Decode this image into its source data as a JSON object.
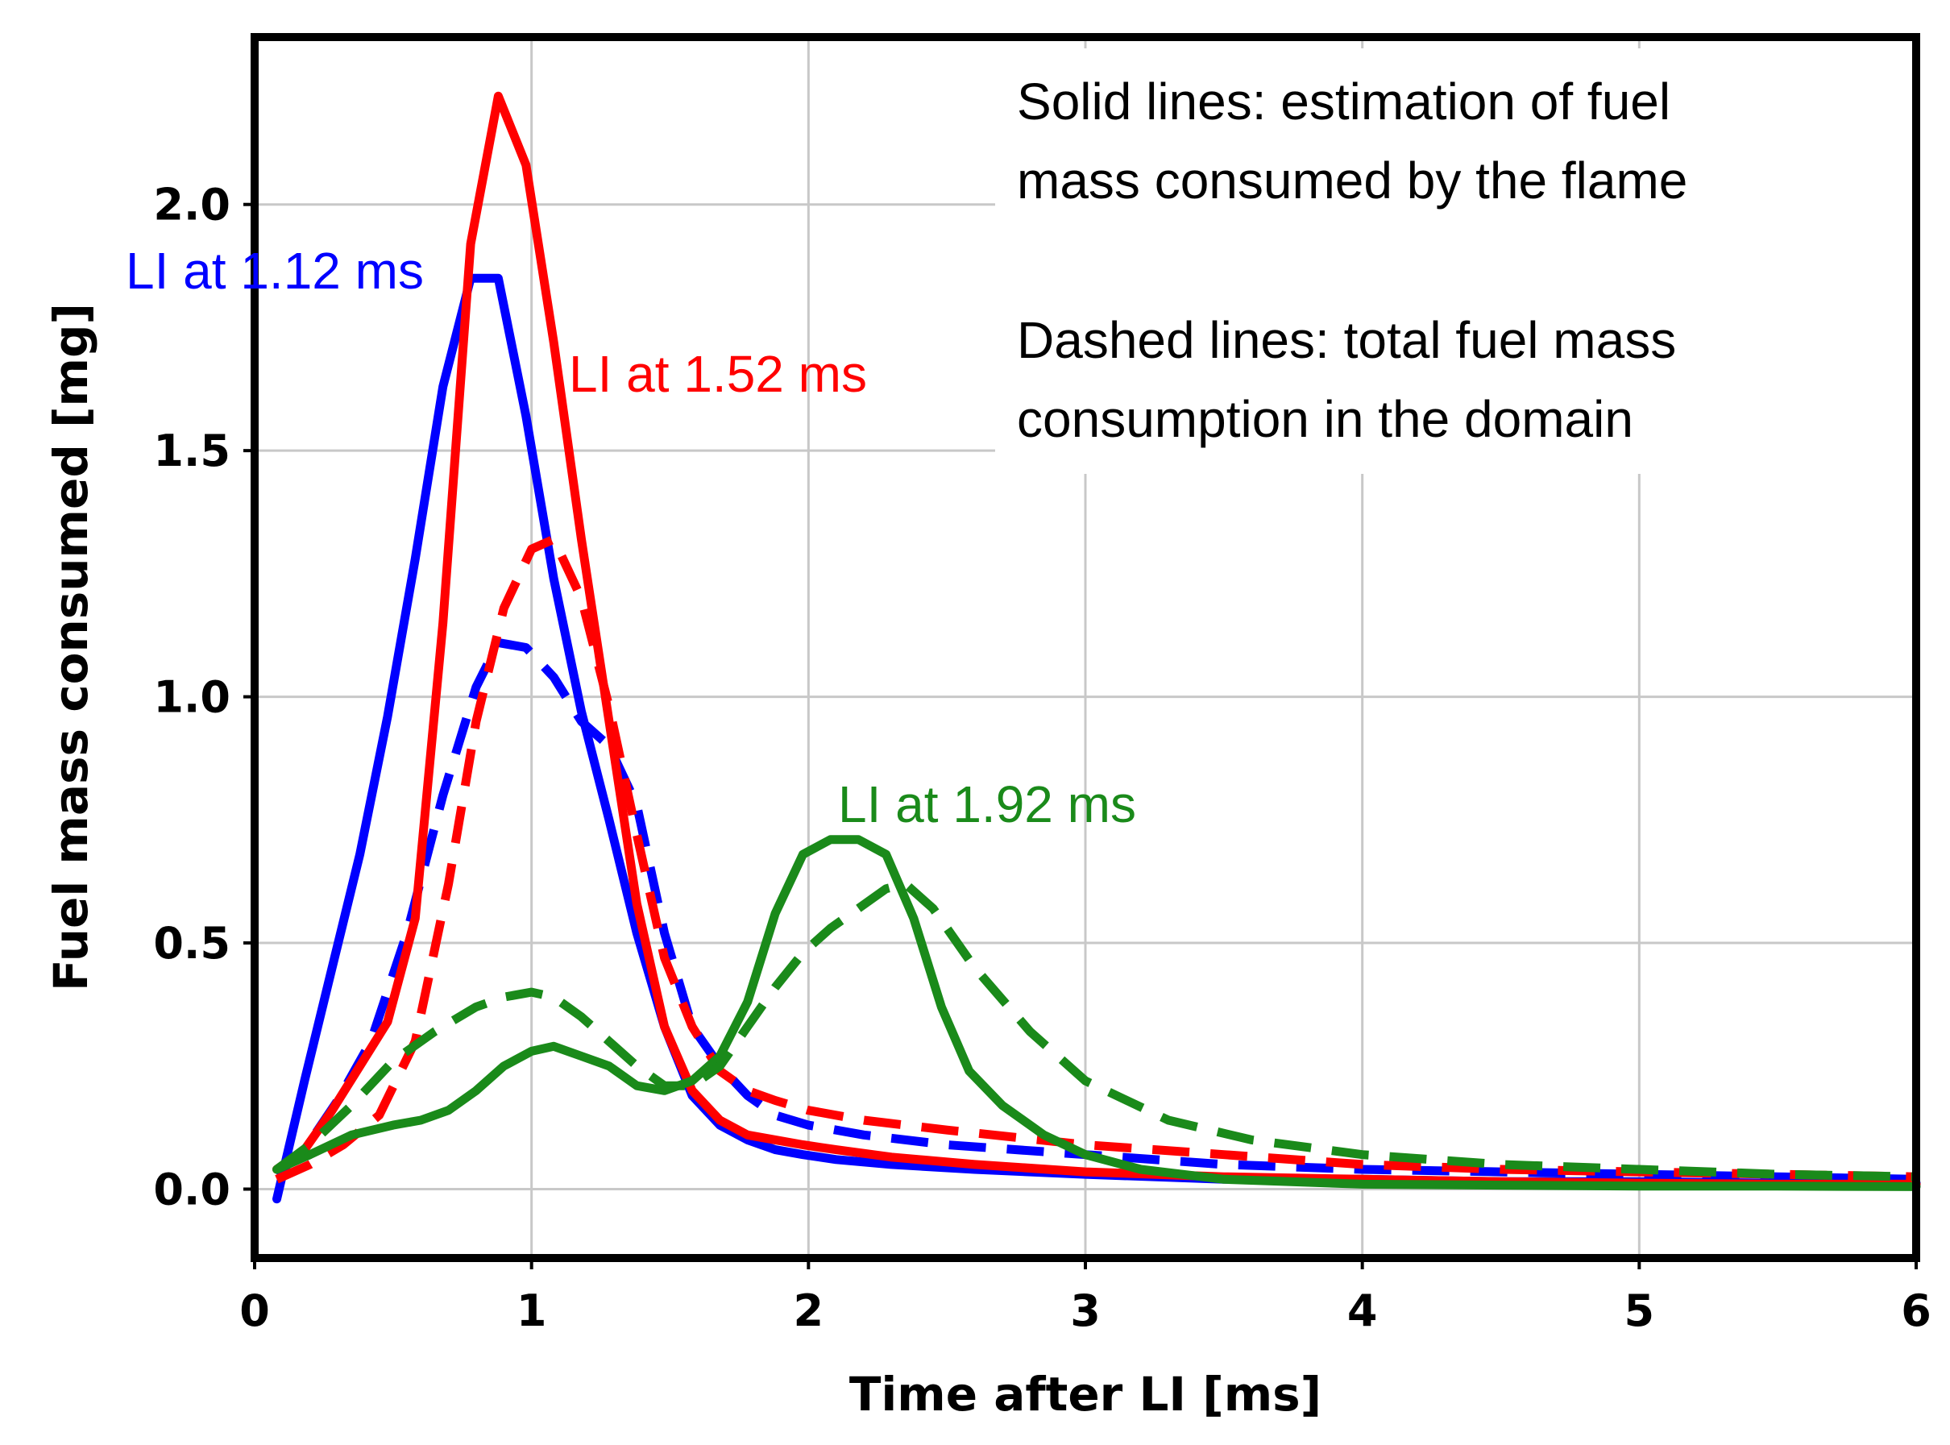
{
  "chart_data": {
    "type": "line",
    "xlabel": "Time after LI [ms]",
    "ylabel": "Fuel mass consumed [mg]",
    "xlim": [
      0,
      6
    ],
    "ylim": [
      -0.14,
      2.34
    ],
    "xticks": [
      0,
      1,
      2,
      3,
      4,
      5,
      6
    ],
    "xtick_labels": [
      "0",
      "1",
      "2",
      "3",
      "4",
      "5",
      "6"
    ],
    "yticks": [
      0.0,
      0.5,
      1.0,
      1.5,
      2.0
    ],
    "ytick_labels": [
      "0.0",
      "0.5",
      "1.0",
      "1.5",
      "2.0"
    ],
    "grid": true,
    "annotations": {
      "solid_line1": "Solid lines: estimation of fuel",
      "solid_line2": "mass consumed by the flame",
      "dashed_line1": "Dashed lines: total fuel mass",
      "dashed_line2": "consumption in the domain"
    },
    "series": [
      {
        "name": "LI at 1.12 ms — flame estimate",
        "label": "LI at 1.12 ms",
        "color": "#0000ff",
        "style": "solid",
        "x": [
          0.08,
          0.18,
          0.28,
          0.38,
          0.48,
          0.58,
          0.68,
          0.78,
          0.88,
          0.98,
          1.08,
          1.18,
          1.28,
          1.38,
          1.48,
          1.58,
          1.68,
          1.78,
          1.88,
          1.98,
          2.1,
          2.3,
          2.6,
          3.0,
          3.5,
          4.0,
          4.5,
          5.0,
          5.5,
          6.0
        ],
        "y": [
          -0.02,
          0.22,
          0.45,
          0.68,
          0.96,
          1.28,
          1.63,
          1.85,
          1.85,
          1.57,
          1.24,
          0.97,
          0.75,
          0.52,
          0.33,
          0.19,
          0.13,
          0.1,
          0.08,
          0.07,
          0.06,
          0.05,
          0.04,
          0.03,
          0.02,
          0.02,
          0.015,
          0.015,
          0.012,
          0.012
        ]
      },
      {
        "name": "LI at 1.12 ms — total domain",
        "color": "#0000ff",
        "style": "dashed",
        "x": [
          0.08,
          0.18,
          0.3,
          0.42,
          0.55,
          0.68,
          0.8,
          0.88,
          0.98,
          1.08,
          1.18,
          1.28,
          1.38,
          1.48,
          1.58,
          1.68,
          1.78,
          1.88,
          2.0,
          2.2,
          2.5,
          3.0,
          3.5,
          4.0,
          4.5,
          5.0,
          5.5,
          6.0
        ],
        "y": [
          0.03,
          0.08,
          0.18,
          0.3,
          0.52,
          0.8,
          1.02,
          1.11,
          1.1,
          1.04,
          0.95,
          0.9,
          0.78,
          0.52,
          0.33,
          0.25,
          0.19,
          0.15,
          0.13,
          0.11,
          0.09,
          0.07,
          0.05,
          0.04,
          0.035,
          0.03,
          0.025,
          0.02
        ]
      },
      {
        "name": "LI at 1.52 ms — flame estimate",
        "label": "LI at 1.52 ms",
        "color": "#ff0000",
        "style": "solid",
        "x": [
          0.08,
          0.18,
          0.28,
          0.38,
          0.48,
          0.58,
          0.68,
          0.78,
          0.88,
          0.98,
          1.08,
          1.18,
          1.28,
          1.38,
          1.48,
          1.58,
          1.68,
          1.78,
          1.88,
          1.98,
          2.1,
          2.3,
          2.6,
          3.0,
          3.5,
          4.0,
          4.5,
          5.0,
          5.5,
          6.0
        ],
        "y": [
          0.04,
          0.08,
          0.16,
          0.25,
          0.34,
          0.55,
          1.15,
          1.92,
          2.22,
          2.08,
          1.72,
          1.32,
          0.95,
          0.58,
          0.33,
          0.2,
          0.14,
          0.11,
          0.1,
          0.09,
          0.08,
          0.065,
          0.05,
          0.035,
          0.025,
          0.02,
          0.015,
          0.012,
          0.01,
          0.01
        ]
      },
      {
        "name": "LI at 1.52 ms — total domain",
        "color": "#ff0000",
        "style": "dashed",
        "x": [
          0.08,
          0.2,
          0.32,
          0.45,
          0.58,
          0.7,
          0.8,
          0.9,
          1.0,
          1.08,
          1.18,
          1.28,
          1.38,
          1.48,
          1.58,
          1.68,
          1.78,
          1.88,
          2.0,
          2.2,
          2.5,
          3.0,
          3.5,
          4.0,
          4.5,
          5.0,
          5.5,
          6.0
        ],
        "y": [
          0.02,
          0.05,
          0.09,
          0.15,
          0.3,
          0.62,
          0.95,
          1.18,
          1.3,
          1.32,
          1.2,
          0.98,
          0.72,
          0.47,
          0.33,
          0.24,
          0.2,
          0.18,
          0.16,
          0.14,
          0.12,
          0.09,
          0.07,
          0.05,
          0.04,
          0.035,
          0.03,
          0.025
        ]
      },
      {
        "name": "LI at 1.92 ms — flame estimate",
        "label": "LI at 1.92 ms",
        "color": "#1a8a1a",
        "style": "solid",
        "x": [
          0.08,
          0.2,
          0.35,
          0.5,
          0.6,
          0.7,
          0.8,
          0.9,
          1.0,
          1.08,
          1.18,
          1.28,
          1.38,
          1.48,
          1.58,
          1.68,
          1.78,
          1.88,
          1.98,
          2.08,
          2.18,
          2.28,
          2.38,
          2.48,
          2.58,
          2.7,
          2.85,
          3.0,
          3.2,
          3.5,
          4.0,
          4.5,
          5.0,
          5.5,
          6.0
        ],
        "y": [
          0.04,
          0.07,
          0.11,
          0.13,
          0.14,
          0.16,
          0.2,
          0.25,
          0.28,
          0.29,
          0.27,
          0.25,
          0.21,
          0.2,
          0.22,
          0.27,
          0.38,
          0.56,
          0.68,
          0.71,
          0.71,
          0.68,
          0.55,
          0.37,
          0.24,
          0.17,
          0.11,
          0.07,
          0.04,
          0.02,
          0.01,
          0.008,
          0.006,
          0.006,
          0.005
        ]
      },
      {
        "name": "LI at 1.92 ms — total domain",
        "color": "#1a8a1a",
        "style": "dashed",
        "x": [
          0.08,
          0.2,
          0.35,
          0.5,
          0.65,
          0.8,
          0.9,
          1.0,
          1.08,
          1.18,
          1.28,
          1.38,
          1.48,
          1.58,
          1.68,
          1.78,
          1.88,
          1.98,
          2.08,
          2.18,
          2.28,
          2.35,
          2.45,
          2.6,
          2.8,
          3.0,
          3.3,
          3.6,
          4.0,
          4.5,
          5.0,
          5.5,
          6.0
        ],
        "y": [
          0.04,
          0.09,
          0.17,
          0.26,
          0.32,
          0.37,
          0.39,
          0.4,
          0.39,
          0.35,
          0.3,
          0.25,
          0.21,
          0.21,
          0.25,
          0.33,
          0.41,
          0.48,
          0.53,
          0.57,
          0.61,
          0.62,
          0.57,
          0.45,
          0.32,
          0.22,
          0.14,
          0.1,
          0.07,
          0.05,
          0.04,
          0.03,
          0.025
        ]
      }
    ]
  }
}
